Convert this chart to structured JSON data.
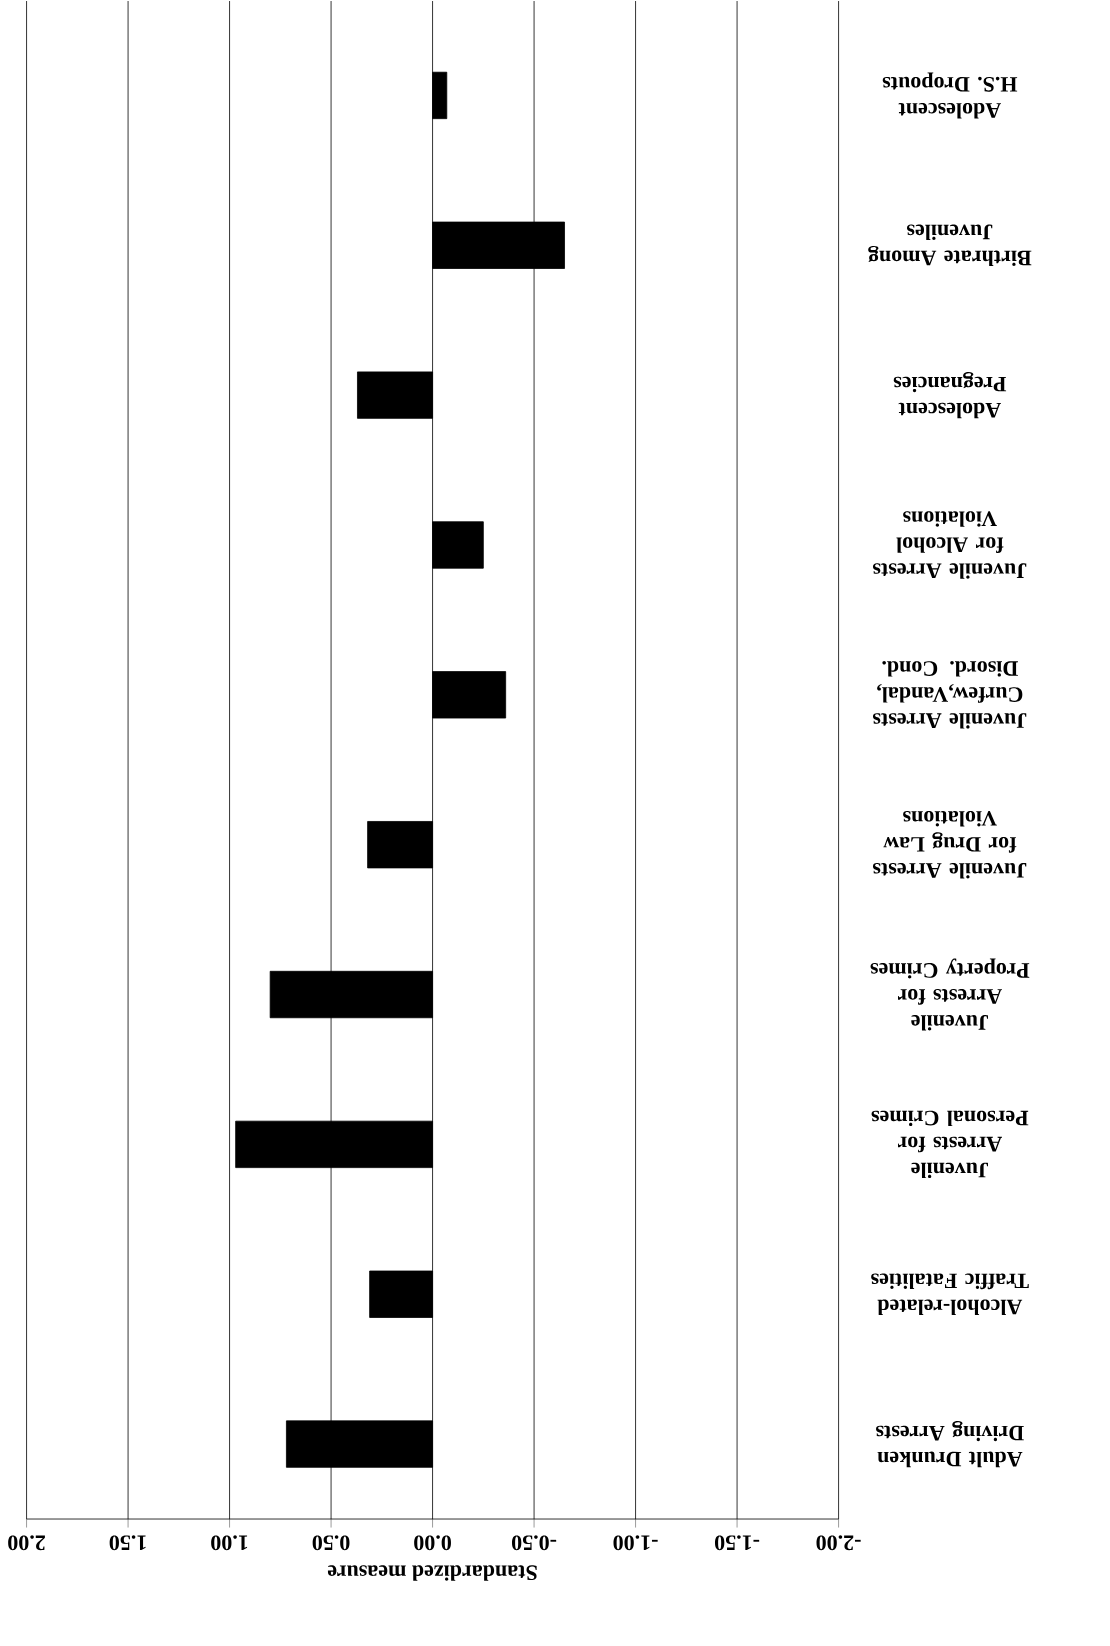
{
  "chart_data": {
    "type": "bar",
    "orientation": "horizontal",
    "xlabel": "Standardized measure",
    "categories": [
      "Adolescent H.S. Dropouts",
      "Birthrate Among Juveniles",
      "Adolescent Pregnancies",
      "Juvenile Arrests for Alcohol Violations",
      "Juvenile Arrests Curfew,Vandal, Disord. Cond.",
      "Juvenile Arrests for Drug Law Violations",
      "Juvenile Arrests for Property Crimes",
      "Juvenile Arrests for Personal Crimes",
      "Alcohol-related Traffic Fatalities",
      "Adult Drunken Driving Arrests"
    ],
    "values": [
      -0.07,
      -0.65,
      0.37,
      -0.25,
      -0.36,
      0.32,
      0.8,
      0.97,
      0.31,
      0.72
    ],
    "color": "#000000",
    "xlim": [
      2,
      -2
    ],
    "xticks": [
      {
        "value": 2,
        "label": "2.00"
      },
      {
        "value": 1.5,
        "label": "1.50"
      },
      {
        "value": 1,
        "label": "1.00"
      },
      {
        "value": 0.5,
        "label": "0.50"
      },
      {
        "value": 0,
        "label": "0.00"
      },
      {
        "value": -0.5,
        "label": "-0.50"
      },
      {
        "value": -1,
        "label": "-1.00"
      },
      {
        "value": -1.5,
        "label": "-1.50"
      },
      {
        "value": -2,
        "label": "-2.00"
      }
    ],
    "grid": "x"
  }
}
